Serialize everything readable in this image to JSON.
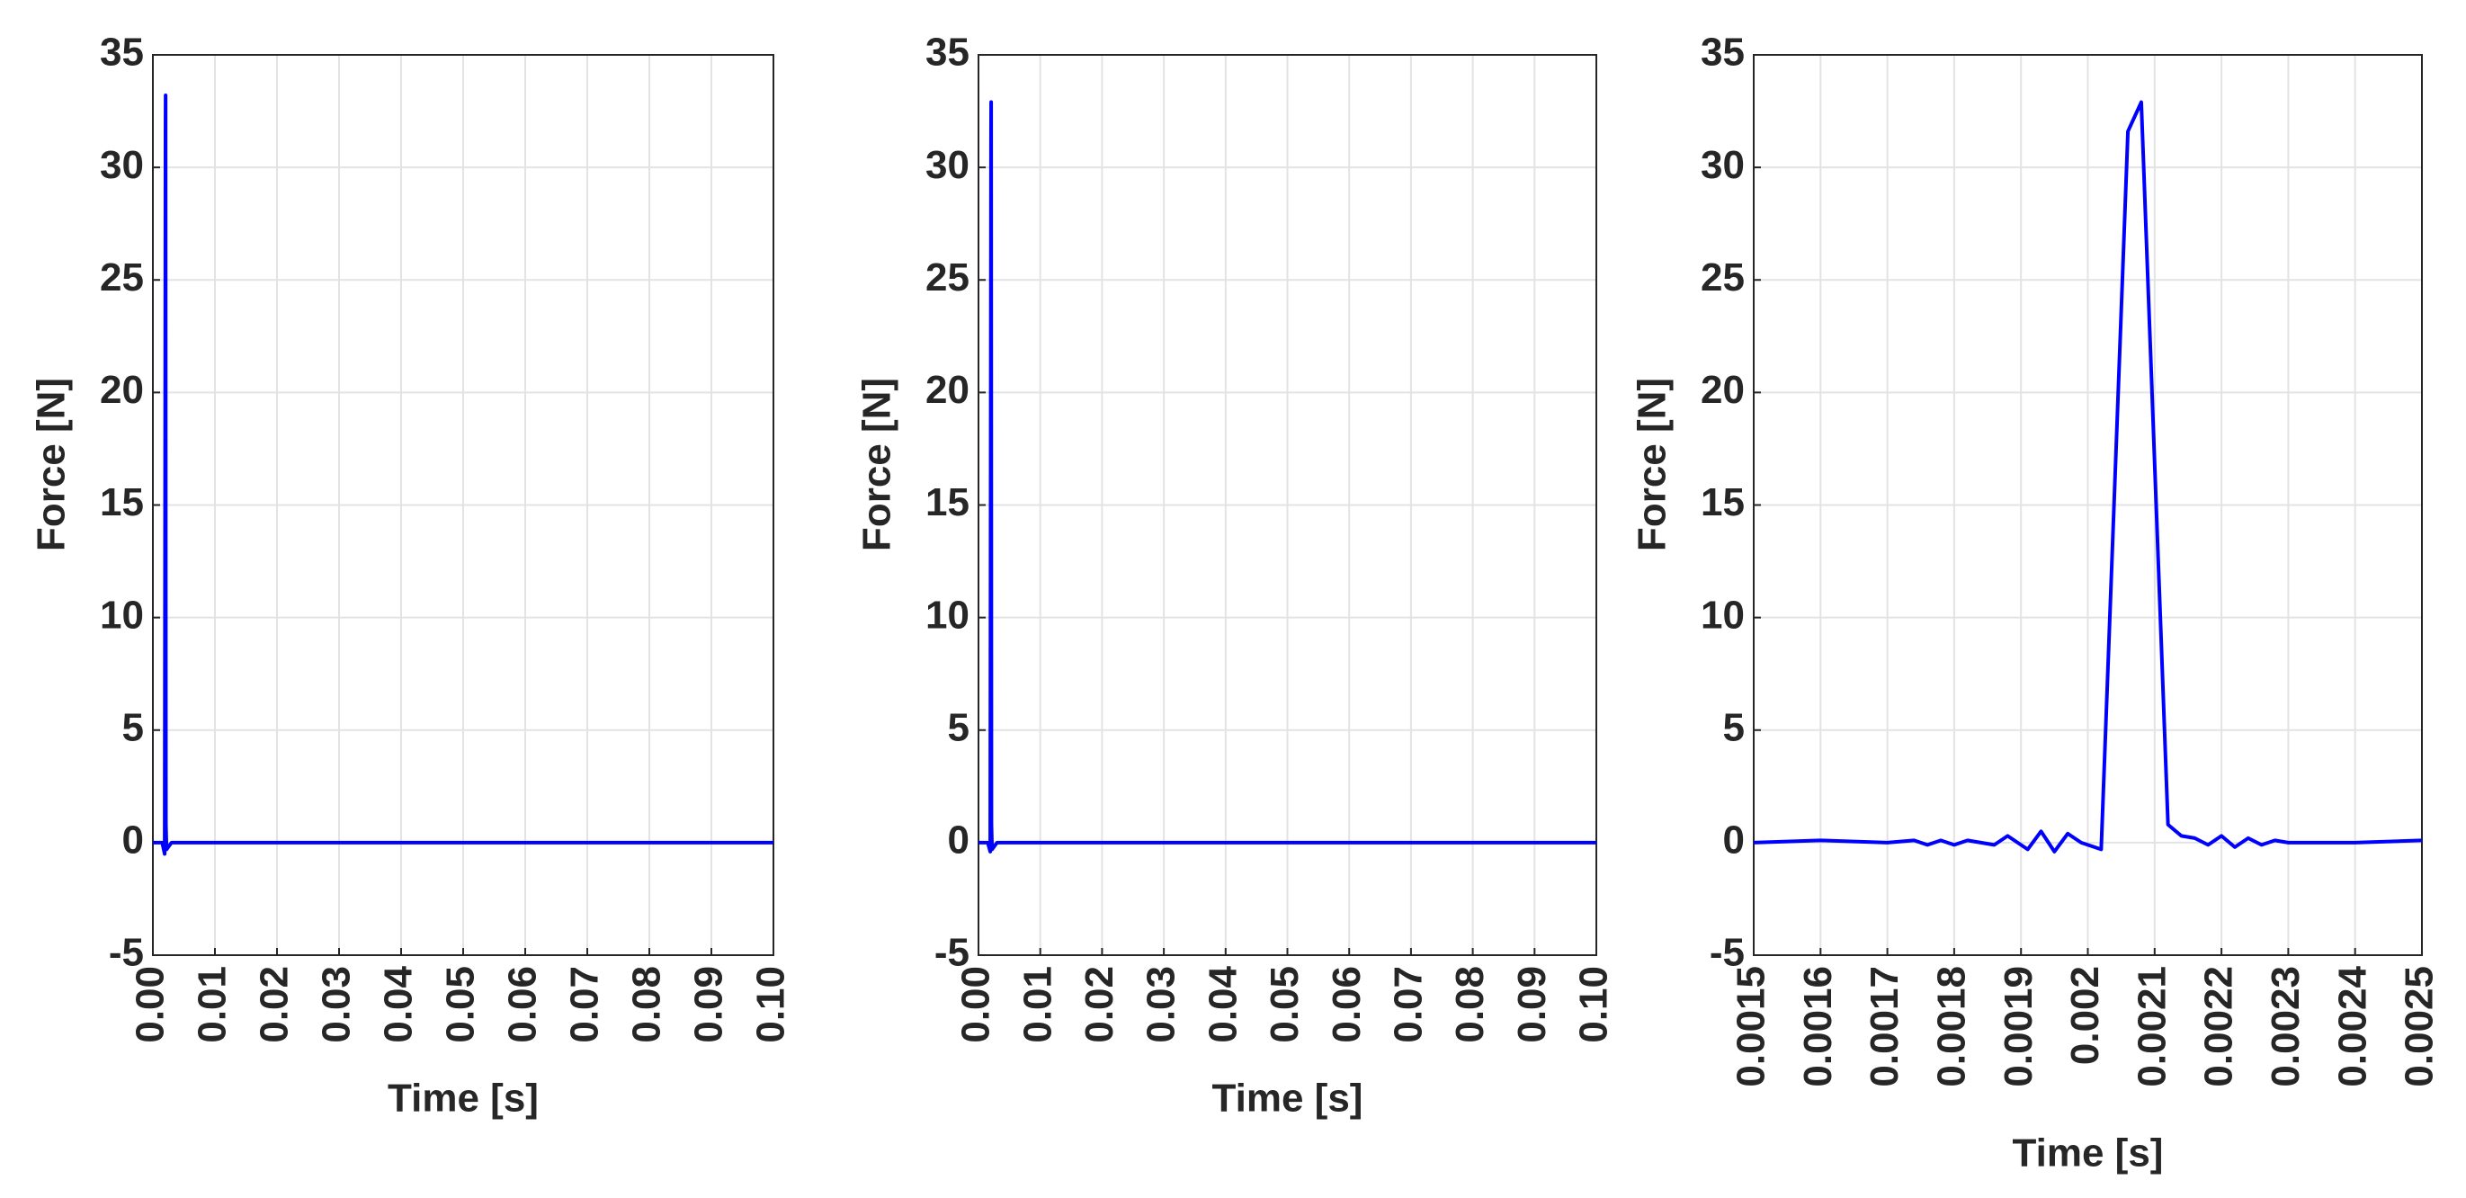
{
  "chart_data": [
    {
      "type": "line",
      "xlabel": "Time [s]",
      "ylabel": "Force [N]",
      "grid": true,
      "x": [
        0,
        0.0015,
        0.0019,
        0.00203,
        0.00205,
        0.0021,
        0.0022,
        0.003,
        0.1
      ],
      "series": [
        {
          "color": "#0000ff",
          "values": [
            0,
            0,
            -0.5,
            31.6,
            33.2,
            0.8,
            -0.3,
            0,
            0
          ]
        }
      ],
      "xlim": [
        0,
        0.1
      ],
      "ylim": [
        -5,
        35
      ],
      "xticks": [
        {
          "value": 0,
          "label": "0.00"
        },
        {
          "value": 0.01,
          "label": "0.01"
        },
        {
          "value": 0.02,
          "label": "0.02"
        },
        {
          "value": 0.03,
          "label": "0.03"
        },
        {
          "value": 0.04,
          "label": "0.04"
        },
        {
          "value": 0.05,
          "label": "0.05"
        },
        {
          "value": 0.06,
          "label": "0.06"
        },
        {
          "value": 0.07,
          "label": "0.07"
        },
        {
          "value": 0.08,
          "label": "0.08"
        },
        {
          "value": 0.09,
          "label": "0.09"
        },
        {
          "value": 0.1,
          "label": "0.10"
        }
      ],
      "yticks": [
        -5,
        0,
        5,
        10,
        15,
        20,
        25,
        30,
        35
      ]
    },
    {
      "type": "line",
      "xlabel": "Time [s]",
      "ylabel": "Force [N]",
      "grid": true,
      "x": [
        0,
        0.0015,
        0.0019,
        0.00203,
        0.00205,
        0.0021,
        0.0022,
        0.003,
        0.1
      ],
      "series": [
        {
          "color": "#0000ff",
          "values": [
            0,
            0,
            -0.4,
            31.6,
            32.9,
            0.8,
            -0.3,
            0,
            0
          ]
        }
      ],
      "xlim": [
        0,
        0.1
      ],
      "ylim": [
        -5,
        35
      ],
      "xticks": [
        {
          "value": 0,
          "label": "0.00"
        },
        {
          "value": 0.01,
          "label": "0.01"
        },
        {
          "value": 0.02,
          "label": "0.02"
        },
        {
          "value": 0.03,
          "label": "0.03"
        },
        {
          "value": 0.04,
          "label": "0.04"
        },
        {
          "value": 0.05,
          "label": "0.05"
        },
        {
          "value": 0.06,
          "label": "0.06"
        },
        {
          "value": 0.07,
          "label": "0.07"
        },
        {
          "value": 0.08,
          "label": "0.08"
        },
        {
          "value": 0.09,
          "label": "0.09"
        },
        {
          "value": 0.1,
          "label": "0.10"
        }
      ],
      "yticks": [
        -5,
        0,
        5,
        10,
        15,
        20,
        25,
        30,
        35
      ]
    },
    {
      "type": "line",
      "xlabel": "Time [s]",
      "ylabel": "Force [N]",
      "grid": true,
      "x": [
        0.0015,
        0.0016,
        0.0017,
        0.00174,
        0.00176,
        0.00178,
        0.0018,
        0.00182,
        0.00186,
        0.00188,
        0.00191,
        0.00193,
        0.00195,
        0.00197,
        0.00199,
        0.00202,
        0.00206,
        0.00208,
        0.00212,
        0.00214,
        0.00216,
        0.00218,
        0.0022,
        0.00222,
        0.00224,
        0.00226,
        0.00228,
        0.0023,
        0.0024,
        0.0025
      ],
      "series": [
        {
          "color": "#0000ff",
          "values": [
            0,
            0.1,
            0,
            0.1,
            -0.1,
            0.1,
            -0.1,
            0.1,
            -0.1,
            0.3,
            -0.3,
            0.5,
            -0.4,
            0.4,
            0,
            -0.3,
            31.6,
            32.9,
            0.8,
            0.3,
            0.2,
            -0.1,
            0.3,
            -0.2,
            0.2,
            -0.1,
            0.1,
            0,
            0,
            0.1
          ]
        }
      ],
      "xlim": [
        0.0015,
        0.0025
      ],
      "ylim": [
        -5,
        35
      ],
      "xticks": [
        0.0015,
        0.0016,
        0.0017,
        0.0018,
        0.0019,
        0.002,
        0.0021,
        0.0022,
        0.0023,
        0.0024,
        0.0025
      ],
      "yticks": [
        -5,
        0,
        5,
        10,
        15,
        20,
        25,
        30,
        35
      ]
    }
  ]
}
